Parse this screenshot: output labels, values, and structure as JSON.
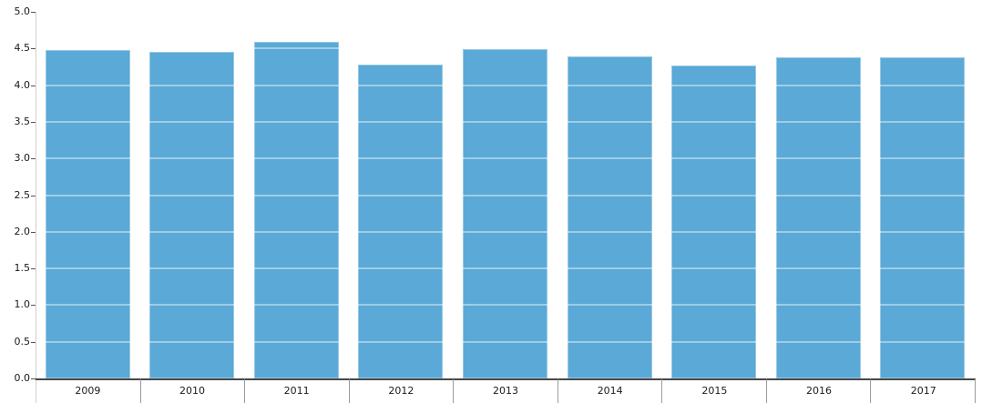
{
  "chart_data": {
    "type": "bar",
    "title": "",
    "xlabel": "",
    "ylabel": "",
    "categories": [
      "2009",
      "2010",
      "2011",
      "2012",
      "2013",
      "2014",
      "2015",
      "2016",
      "2017"
    ],
    "values": [
      4.48,
      4.46,
      4.59,
      4.28,
      4.49,
      4.39,
      4.27,
      4.38,
      4.38
    ],
    "ylim": [
      0,
      5
    ],
    "ytick_interval": 0.5,
    "ytick_labels": [
      "0.0",
      "0.5",
      "1.0",
      "1.5",
      "2.0",
      "2.5",
      "3.0",
      "3.5",
      "4.0",
      "4.5",
      "5.0"
    ],
    "legend": null,
    "grid": "horizontal-white-over-bars"
  },
  "colors": {
    "background": "#ffffff",
    "bar_fill": "#5aa9d6",
    "axis_line_left": "#cfcfcf",
    "axis_line_bottom": "#474747",
    "tick_mark": "#555555",
    "category_separator": "#9a9a9a",
    "text": "#1a1a1a"
  }
}
